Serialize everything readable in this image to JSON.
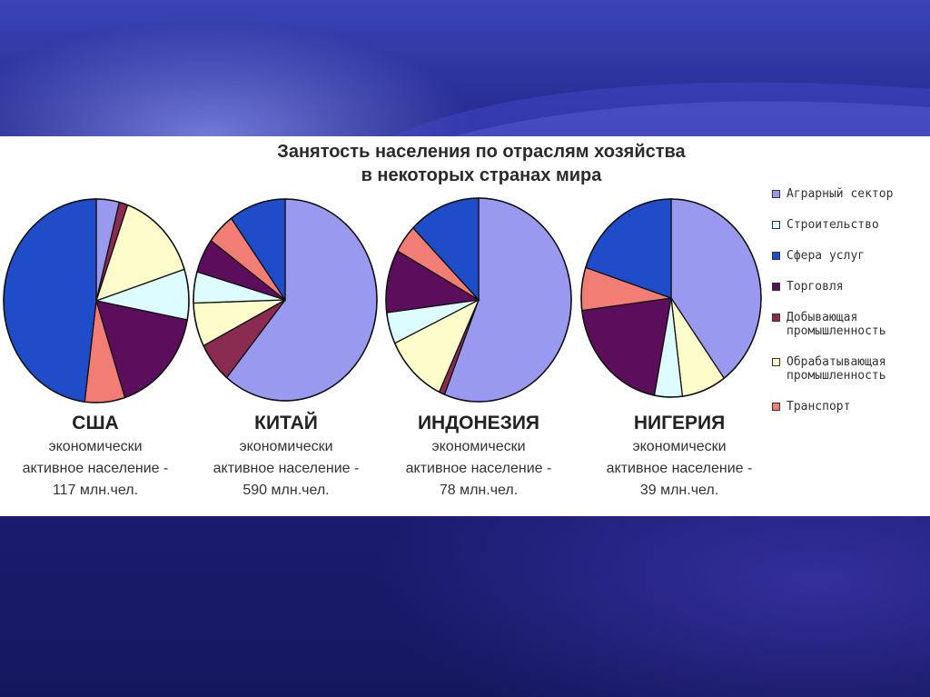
{
  "title_lines": [
    "Занятость населения по отраслям хозяйства",
    "в некоторых странах мира"
  ],
  "chart_data": {
    "type": "pie",
    "legend_position": "right",
    "sectors": [
      {
        "name": "Аграрный сектор",
        "color": "#9999f0"
      },
      {
        "name": "Строительство",
        "color": "#ddfcff"
      },
      {
        "name": "Сфера услуг",
        "color": "#1f4cc9"
      },
      {
        "name": "Торговля",
        "color": "#5c0d5c"
      },
      {
        "name": "Добывающая\nпромышленность",
        "color": "#8a2c50"
      },
      {
        "name": "Обрабатывающая\nпромышленность",
        "color": "#fdfdcc"
      },
      {
        "name": "Транспорт",
        "color": "#f27d74"
      }
    ],
    "pies": [
      {
        "country": "США",
        "caption_lines": [
          "экономически",
          "активное население -",
          "117 млн.чел."
        ],
        "slices": [
          {
            "sector": "Аграрный сектор",
            "value": 4
          },
          {
            "sector": "Добывающая\nпромышленность",
            "value": 1.5
          },
          {
            "sector": "Обрабатывающая\nпромышленность",
            "value": 14.5
          },
          {
            "sector": "Строительство",
            "value": 8
          },
          {
            "sector": "Торговля",
            "value": 17
          },
          {
            "sector": "Транспорт",
            "value": 7
          },
          {
            "sector": "Сфера услуг",
            "value": 48
          }
        ]
      },
      {
        "country": "КИТАЙ",
        "caption_lines": [
          "экономически",
          "активное население -",
          "590 млн.чел."
        ],
        "slices": [
          {
            "sector": "Аграрный сектор",
            "value": 61
          },
          {
            "sector": "Добывающая\nпромышленность",
            "value": 6.5
          },
          {
            "sector": "Обрабатывающая\nпромышленность",
            "value": 7
          },
          {
            "sector": "Строительство",
            "value": 5
          },
          {
            "sector": "Торговля",
            "value": 5.5
          },
          {
            "sector": "Транспорт",
            "value": 5
          },
          {
            "sector": "Сфера услуг",
            "value": 10
          }
        ]
      },
      {
        "country": "ИНДОНЕЗИЯ",
        "caption_lines": [
          "экономически",
          "активное население -",
          "78 млн.чел."
        ],
        "slices": [
          {
            "sector": "Аграрный сектор",
            "value": 56
          },
          {
            "sector": "Добывающая\nпромышленность",
            "value": 1
          },
          {
            "sector": "Обрабатывающая\nпромышленность",
            "value": 11
          },
          {
            "sector": "Строительство",
            "value": 5
          },
          {
            "sector": "Торговля",
            "value": 10
          },
          {
            "sector": "Транспорт",
            "value": 4.5
          },
          {
            "sector": "Сфера услуг",
            "value": 12.5
          }
        ]
      },
      {
        "country": "НИГЕРИЯ",
        "caption_lines": [
          "экономически",
          "активное население -",
          "39 млн.чел."
        ],
        "slices": [
          {
            "sector": "Аграрный сектор",
            "value": 40
          },
          {
            "sector": "Обрабатывающая\nпромышленность",
            "value": 8
          },
          {
            "sector": "Строительство",
            "value": 5
          },
          {
            "sector": "Торговля",
            "value": 20
          },
          {
            "sector": "Транспорт",
            "value": 7
          },
          {
            "sector": "Сфера услуг",
            "value": 20
          }
        ]
      }
    ]
  }
}
